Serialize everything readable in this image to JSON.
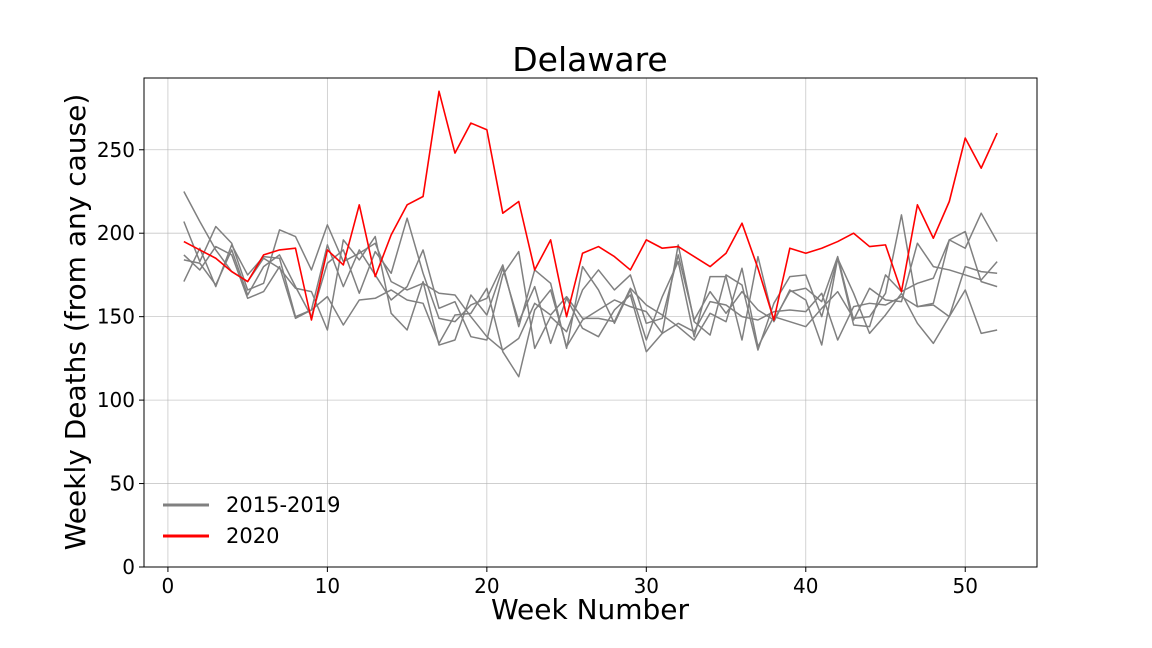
{
  "chart_data": {
    "type": "line",
    "title": "Delaware",
    "xlabel": "Week Number",
    "ylabel": "Weekly Deaths (from any cause)",
    "xlim": [
      -1.5,
      54.5
    ],
    "ylim": [
      0,
      293
    ],
    "xticks": [
      0,
      10,
      20,
      30,
      40,
      50
    ],
    "yticks": [
      0,
      50,
      100,
      150,
      200,
      250
    ],
    "grid": true,
    "legend_position": "lower-left",
    "legend": [
      {
        "label": "2015-2019",
        "color": "#808080"
      },
      {
        "label": "2020",
        "color": "#ff0000"
      }
    ],
    "x": [
      1,
      2,
      3,
      4,
      5,
      6,
      7,
      8,
      9,
      10,
      11,
      12,
      13,
      14,
      15,
      16,
      17,
      18,
      19,
      20,
      21,
      22,
      23,
      24,
      25,
      26,
      27,
      28,
      29,
      30,
      31,
      32,
      33,
      34,
      35,
      36,
      37,
      38,
      39,
      40,
      41,
      42,
      43,
      44,
      45,
      46,
      47,
      48,
      49,
      50,
      51,
      52
    ],
    "series": [
      {
        "name": "2015-2019",
        "color": "#808080",
        "values": [
          225,
          207,
          190,
          177,
          171,
          185,
          179,
          167,
          165,
          142,
          196,
          184,
          198,
          152,
          142,
          171,
          133,
          136,
          163,
          151,
          179,
          147,
          168,
          134,
          161,
          143,
          138,
          154,
          163,
          129,
          140,
          193,
          147,
          139,
          175,
          169,
          130,
          158,
          174,
          175,
          150,
          185,
          164,
          140,
          151,
          164,
          146,
          134,
          150,
          166,
          140,
          142
        ]
      },
      {
        "name": "2015-2019",
        "color": "#808080",
        "values": [
          184,
          182,
          169,
          190,
          163,
          180,
          187,
          168,
          150,
          182,
          190,
          164,
          189,
          176,
          209,
          176,
          149,
          147,
          157,
          161,
          181,
          144,
          178,
          170,
          131,
          180,
          166,
          146,
          166,
          136,
          162,
          183,
          138,
          174,
          174,
          136,
          186,
          147,
          166,
          160,
          133,
          185,
          145,
          144,
          175,
          165,
          170,
          173,
          196,
          201,
          171,
          168
        ]
      },
      {
        "name": "2015-2019",
        "color": "#808080",
        "values": [
          171,
          191,
          168,
          193,
          175,
          186,
          185,
          150,
          154,
          193,
          168,
          190,
          175,
          160,
          168,
          190,
          155,
          159,
          138,
          136,
          175,
          189,
          131,
          150,
          141,
          166,
          178,
          166,
          175,
          146,
          149,
          187,
          148,
          165,
          152,
          165,
          154,
          148,
          165,
          167,
          159,
          186,
          148,
          167,
          160,
          159,
          194,
          180,
          178,
          175,
          172,
          183
        ]
      },
      {
        "name": "2015-2019",
        "color": "#808080",
        "values": [
          187,
          178,
          192,
          187,
          161,
          165,
          180,
          149,
          154,
          162,
          145,
          160,
          161,
          166,
          160,
          158,
          134,
          151,
          152,
          167,
          129,
          114,
          154,
          166,
          132,
          148,
          154,
          160,
          156,
          153,
          140,
          146,
          141,
          159,
          157,
          150,
          148,
          153,
          154,
          153,
          164,
          136,
          156,
          158,
          157,
          162,
          156,
          157,
          150,
          180,
          177,
          176
        ]
      },
      {
        "name": "2015-2019",
        "color": "#808080",
        "values": [
          207,
          183,
          204,
          194,
          166,
          170,
          202,
          198,
          178,
          205,
          183,
          188,
          194,
          171,
          166,
          170,
          164,
          163,
          150,
          138,
          130,
          137,
          158,
          151,
          162,
          149,
          149,
          147,
          167,
          157,
          151,
          144,
          136,
          152,
          147,
          179,
          132,
          150,
          147,
          144,
          155,
          165,
          149,
          150,
          164,
          211,
          156,
          158,
          196,
          191,
          212,
          195
        ]
      },
      {
        "name": "2020",
        "color": "#ff0000",
        "values": [
          195,
          190,
          185,
          177,
          171,
          187,
          190,
          191,
          148,
          190,
          181,
          217,
          174,
          199,
          217,
          222,
          285,
          248,
          266,
          262,
          212,
          219,
          178,
          196,
          150,
          188,
          192,
          186,
          178,
          196,
          191,
          192,
          186,
          180,
          188,
          206,
          179,
          148,
          191,
          188,
          191,
          195,
          200,
          192,
          193,
          165,
          217,
          197,
          219,
          257,
          239,
          260
        ]
      }
    ]
  }
}
